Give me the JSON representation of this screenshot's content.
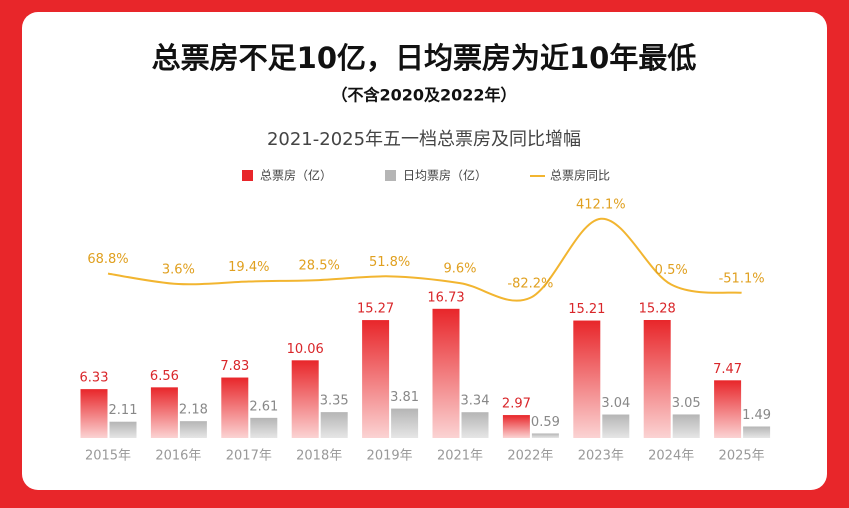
{
  "chart_data": {
    "type": "bar",
    "title": "总票房不足10亿，日均票房为近10年最低",
    "subtitle": "（不含2020及2022年）",
    "chart_title": "2021-2025年五一档总票房及同比增幅",
    "categories": [
      "2015年",
      "2016年",
      "2017年",
      "2018年",
      "2019年",
      "2021年",
      "2022年",
      "2023年",
      "2024年",
      "2025年"
    ],
    "ylim": [
      0,
      36
    ],
    "y2lim": [
      -960,
      780
    ],
    "series": [
      {
        "name": "总票房（亿）",
        "type": "bar",
        "color": "#e8262a",
        "values": [
          6.33,
          6.56,
          7.83,
          10.06,
          15.27,
          16.73,
          2.97,
          15.21,
          15.28,
          7.47
        ]
      },
      {
        "name": "日均票房（亿）",
        "type": "bar",
        "color": "#b5b5b5",
        "values": [
          2.11,
          2.18,
          2.61,
          3.35,
          3.81,
          3.34,
          0.59,
          3.04,
          3.05,
          1.49
        ]
      },
      {
        "name": "总票房同比",
        "type": "line",
        "axis": "y2",
        "color": "#f2b530",
        "values": [
          68.8,
          3.6,
          19.4,
          28.5,
          51.8,
          9.6,
          -82.2,
          412.1,
          0.5,
          -51.1
        ],
        "value_labels": [
          "68.8%",
          "3.6%",
          "19.4%",
          "28.5%",
          "51.8%",
          "9.6%",
          "-82.2%",
          "412.1%",
          "0.5%",
          "-51.1%"
        ]
      }
    ]
  }
}
